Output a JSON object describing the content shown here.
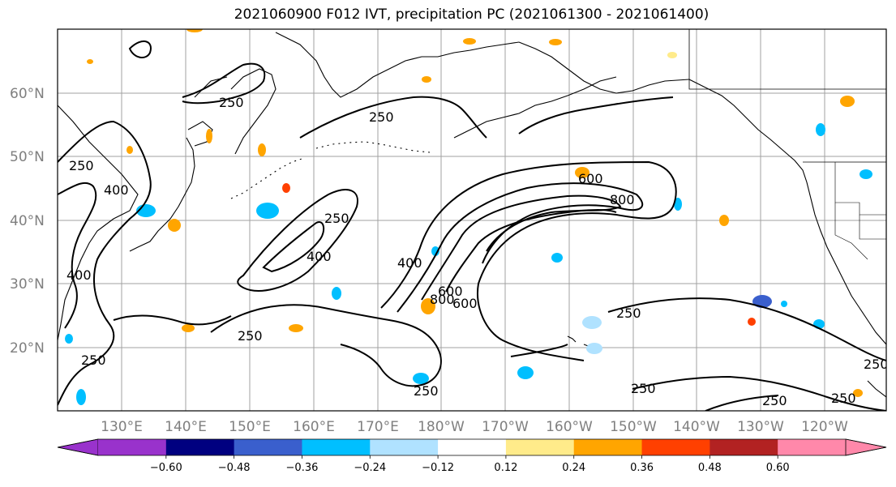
{
  "title": "2021060900 F012 IVT, precipitation PC (2021061300 - 2021061400)",
  "map": {
    "lat_labels": [
      "60°N",
      "50°N",
      "40°N",
      "30°N",
      "20°N"
    ],
    "lon_labels": [
      "130°E",
      "140°E",
      "150°E",
      "160°E",
      "170°E",
      "180°W",
      "170°W",
      "160°W",
      "150°W",
      "140°W",
      "130°W",
      "120°W"
    ],
    "contour_labels": [
      "250",
      "250",
      "250",
      "250",
      "250",
      "250",
      "250",
      "250",
      "250",
      "250",
      "250",
      "250",
      "400",
      "400",
      "400",
      "400",
      "600",
      "600",
      "600",
      "800",
      "800"
    ]
  },
  "colorbar": {
    "ticks": [
      "−0.60",
      "−0.48",
      "−0.36",
      "−0.24",
      "−0.12",
      "0.12",
      "0.24",
      "0.36",
      "0.48",
      "0.60"
    ],
    "colors": {
      "under": "#9932cc",
      "bins": [
        "#000080",
        "#3a5fcd",
        "#00bfff",
        "#b0e2ff",
        "#ffffff",
        "#ffeb8a",
        "#ffa500",
        "#ff4000",
        "#b22222"
      ],
      "over": "#ff88aa"
    }
  },
  "chart_data": {
    "type": "contour map",
    "field": "IVT, precipitation PC",
    "init_time": "2021060900",
    "forecast_hour": "F012",
    "valid_range": [
      "2021061300",
      "2021061400"
    ],
    "lat_range": [
      10,
      70
    ],
    "lon_range": [
      "120°E",
      "110°W"
    ],
    "contour_levels": [
      250,
      400,
      600,
      800
    ],
    "colorbar_levels": [
      -0.6,
      -0.48,
      -0.36,
      -0.24,
      -0.12,
      0.12,
      0.24,
      0.36,
      0.48,
      0.6
    ],
    "colorbar_extend": "both",
    "grid": true
  }
}
